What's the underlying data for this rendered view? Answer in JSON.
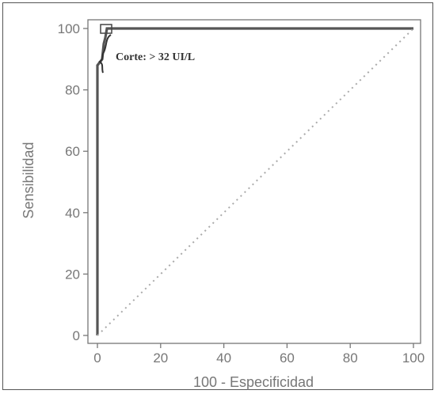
{
  "chart_data": {
    "type": "line",
    "xlabel": "100 - Especificidad",
    "ylabel": "Sensibilidad",
    "xlim": [
      0,
      100
    ],
    "ylim": [
      0,
      100
    ],
    "x_ticks": [
      0,
      20,
      40,
      60,
      80,
      100
    ],
    "y_ticks": [
      0,
      20,
      40,
      60,
      80,
      100
    ],
    "grid": false,
    "series": [
      {
        "style": "solid",
        "color": "#555555",
        "x": [
          0,
          0,
          1.5,
          2,
          2.5,
          3,
          100
        ],
        "y": [
          0,
          88,
          90,
          95,
          97,
          100,
          100
        ]
      },
      {
        "style": "dotted",
        "color": "#aaaaaa",
        "x": [
          0,
          100
        ],
        "y": [
          0,
          100
        ]
      }
    ],
    "annotation": {
      "text": "Corte: > 32 UI/L",
      "x": 3,
      "y": 97
    }
  }
}
